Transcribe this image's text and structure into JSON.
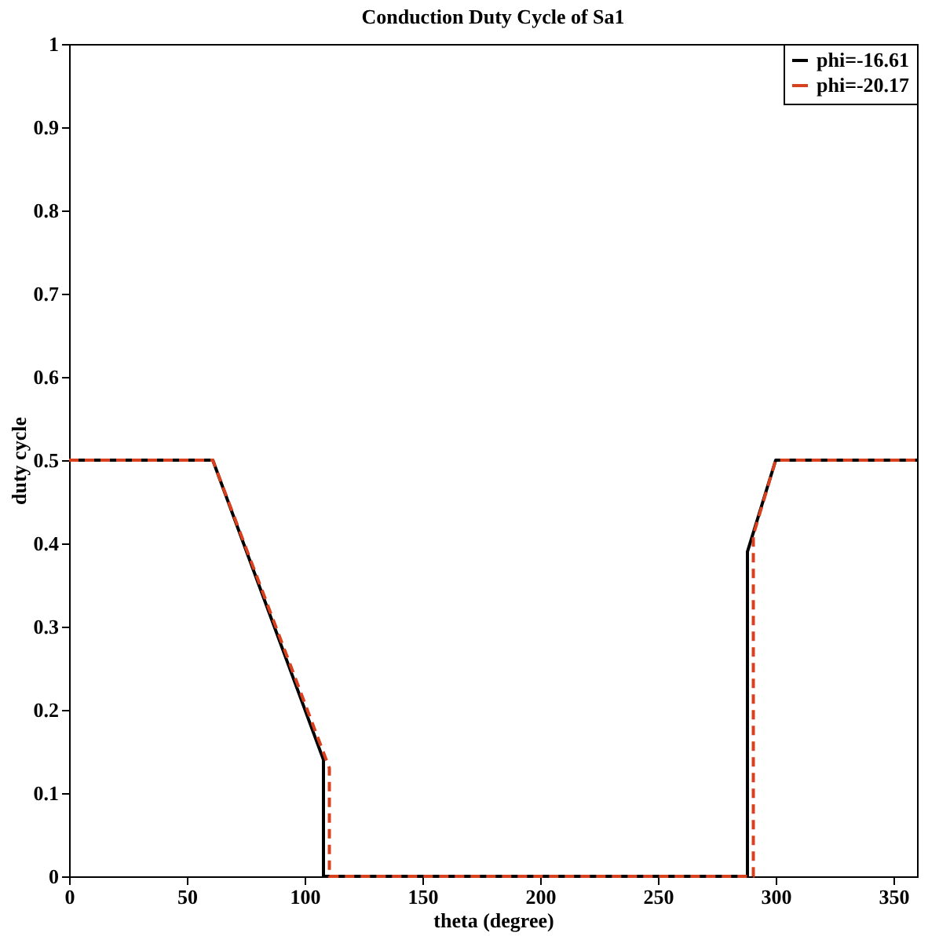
{
  "chart_data": {
    "type": "line",
    "title": "Conduction Duty Cycle of Sa1",
    "xlabel": "theta (degree)",
    "ylabel": "duty cycle",
    "series": [
      {
        "name": "phi=-16.61",
        "color": "#000000",
        "line_style": "solid",
        "x": [
          0,
          61,
          108,
          108,
          288,
          288,
          300,
          360
        ],
        "values": [
          0.5,
          0.5,
          0.14,
          0,
          0,
          0.39,
          0.5,
          0.5
        ]
      },
      {
        "name": "phi=-20.17",
        "color": "#d9411e",
        "line_style": "dashed",
        "x": [
          0,
          61,
          110.5,
          110.5,
          290.5,
          290.5,
          300,
          360
        ],
        "values": [
          0.5,
          0.5,
          0.13,
          0,
          0,
          0.41,
          0.5,
          0.5
        ]
      }
    ],
    "xlim": [
      0,
      360
    ],
    "xticks": [
      0,
      50,
      100,
      150,
      200,
      250,
      300,
      350
    ],
    "ylim": [
      0,
      1
    ],
    "yticks": [
      0,
      0.1,
      0.2,
      0.3,
      0.4,
      0.5,
      0.6,
      0.7,
      0.8,
      0.9,
      1
    ],
    "grid": false,
    "legend": "top right",
    "marker": "none"
  }
}
